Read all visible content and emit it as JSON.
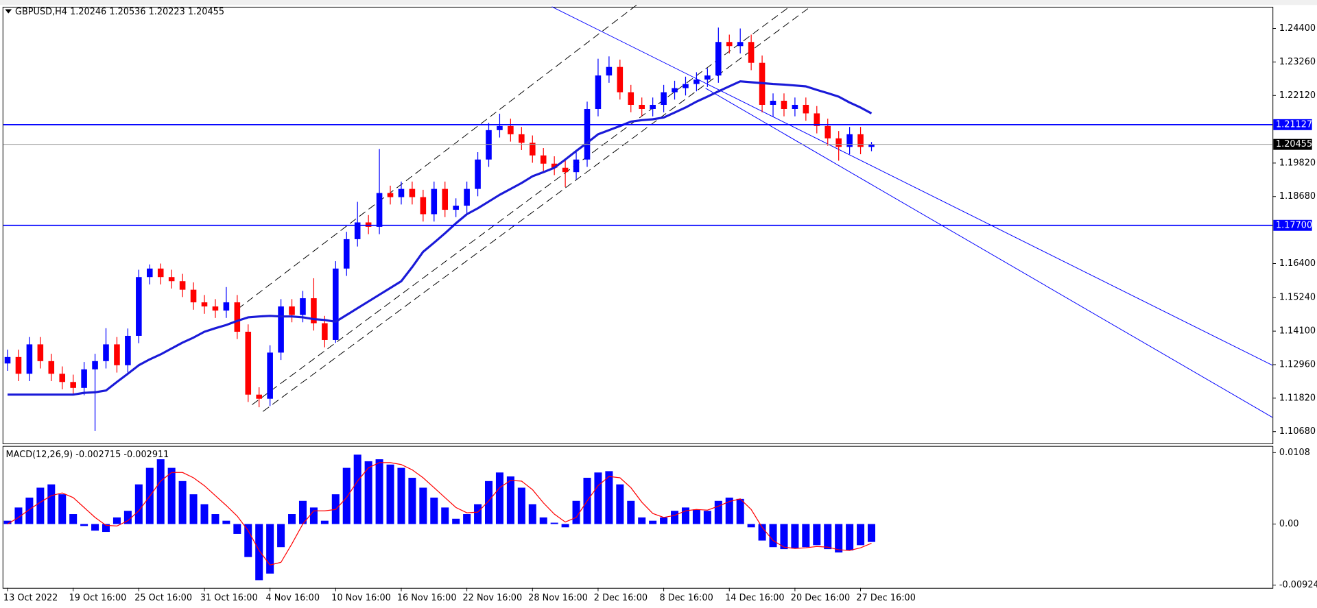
{
  "chart_data": [
    {
      "type": "candlestick",
      "symbol": "GBPUSD,H4",
      "header_ohlc": [
        1.20246,
        1.20536,
        1.20223,
        1.20455
      ],
      "up_color": "#0000ff",
      "down_color": "#ff0000",
      "categories": [
        "13 Oct 2022",
        null,
        null,
        null,
        null,
        null,
        "19 Oct 16:00",
        null,
        null,
        null,
        null,
        null,
        "25 Oct 16:00",
        null,
        null,
        null,
        null,
        null,
        "31 Oct 16:00",
        null,
        null,
        null,
        null,
        null,
        "4 Nov 16:00",
        null,
        null,
        null,
        null,
        null,
        "10 Nov 16:00",
        null,
        null,
        null,
        null,
        null,
        "16 Nov 16:00",
        null,
        null,
        null,
        null,
        null,
        "22 Nov 16:00",
        null,
        null,
        null,
        null,
        null,
        "28 Nov 16:00",
        null,
        null,
        null,
        null,
        null,
        "2 Dec 16:00",
        null,
        null,
        null,
        null,
        null,
        "8 Dec 16:00",
        null,
        null,
        null,
        null,
        null,
        "14 Dec 16:00",
        null,
        null,
        null,
        null,
        null,
        "20 Dec 16:00",
        null,
        null,
        null,
        null,
        null,
        "27 Dec 16:00",
        null
      ],
      "candles": [
        [
          1.13,
          1.1347,
          1.1275,
          1.1322
        ],
        [
          1.1322,
          1.1347,
          1.124,
          1.1265
        ],
        [
          1.1265,
          1.139,
          1.124,
          1.1365
        ],
        [
          1.1365,
          1.139,
          1.1283,
          1.1308
        ],
        [
          1.1308,
          1.1333,
          1.124,
          1.1265
        ],
        [
          1.1265,
          1.129,
          1.1212,
          1.1237
        ],
        [
          1.1237,
          1.1262,
          1.1192,
          1.1217
        ],
        [
          1.1217,
          1.1305,
          1.1192,
          1.128
        ],
        [
          1.128,
          1.1333,
          1.107,
          1.1308
        ],
        [
          1.1308,
          1.142,
          1.1283,
          1.1365
        ],
        [
          1.1365,
          1.139,
          1.1269,
          1.1294
        ],
        [
          1.1294,
          1.1419,
          1.1269,
          1.1394
        ],
        [
          1.1394,
          1.1619,
          1.1369,
          1.1594
        ],
        [
          1.1594,
          1.1637,
          1.1569,
          1.1623
        ],
        [
          1.1623,
          1.164,
          1.1569,
          1.1594
        ],
        [
          1.1594,
          1.1619,
          1.1555,
          1.158
        ],
        [
          1.158,
          1.1605,
          1.1526,
          1.1551
        ],
        [
          1.1551,
          1.1576,
          1.1483,
          1.1508
        ],
        [
          1.1508,
          1.1533,
          1.1469,
          1.1494
        ],
        [
          1.1494,
          1.1519,
          1.1455,
          1.148
        ],
        [
          1.148,
          1.156,
          1.1455,
          1.1508
        ],
        [
          1.1508,
          1.1533,
          1.1383,
          1.1408
        ],
        [
          1.1408,
          1.1433,
          1.1169,
          1.1194
        ],
        [
          1.1194,
          1.1219,
          1.1151,
          1.118
        ],
        [
          1.118,
          1.1362,
          1.1155,
          1.1337
        ],
        [
          1.1337,
          1.1519,
          1.1312,
          1.1494
        ],
        [
          1.1494,
          1.1519,
          1.144,
          1.1465
        ],
        [
          1.1465,
          1.1547,
          1.144,
          1.1522
        ],
        [
          1.1522,
          1.159,
          1.1412,
          1.1437
        ],
        [
          1.1437,
          1.1462,
          1.1355,
          1.138
        ],
        [
          1.138,
          1.1648,
          1.137,
          1.1623
        ],
        [
          1.1623,
          1.1748,
          1.1598,
          1.1723
        ],
        [
          1.1723,
          1.185,
          1.1698,
          1.178
        ],
        [
          1.178,
          1.1805,
          1.174,
          1.1765
        ],
        [
          1.1765,
          1.203,
          1.174,
          1.188
        ],
        [
          1.188,
          1.1905,
          1.1841,
          1.1866
        ],
        [
          1.1866,
          1.1919,
          1.1841,
          1.1894
        ],
        [
          1.1894,
          1.1919,
          1.1841,
          1.1866
        ],
        [
          1.1866,
          1.1891,
          1.1783,
          1.1808
        ],
        [
          1.1808,
          1.1919,
          1.1783,
          1.1894
        ],
        [
          1.1894,
          1.1919,
          1.1798,
          1.1823
        ],
        [
          1.1823,
          1.1862,
          1.1798,
          1.1837
        ],
        [
          1.1837,
          1.1919,
          1.1812,
          1.1894
        ],
        [
          1.1894,
          1.2019,
          1.1869,
          1.1994
        ],
        [
          1.1994,
          1.2119,
          1.1969,
          1.2094
        ],
        [
          1.2094,
          1.215,
          1.2069,
          1.2108
        ],
        [
          1.2108,
          1.2133,
          1.2055,
          1.208
        ],
        [
          1.208,
          1.2105,
          1.2026,
          1.2051
        ],
        [
          1.2051,
          1.2076,
          1.1983,
          1.2008
        ],
        [
          1.2008,
          1.2033,
          1.1955,
          1.198
        ],
        [
          1.198,
          1.2005,
          1.1941,
          1.1966
        ],
        [
          1.1966,
          1.1991,
          1.19,
          1.1951
        ],
        [
          1.1951,
          1.2019,
          1.1926,
          1.1994
        ],
        [
          1.1994,
          1.2191,
          1.1969,
          1.2166
        ],
        [
          1.2166,
          1.2337,
          1.2141,
          1.228
        ],
        [
          1.228,
          1.2345,
          1.2255,
          1.2309
        ],
        [
          1.2309,
          1.2334,
          1.2198,
          1.2223
        ],
        [
          1.2223,
          1.2248,
          1.2155,
          1.218
        ],
        [
          1.218,
          1.2205,
          1.2141,
          1.2166
        ],
        [
          1.2166,
          1.2205,
          1.2141,
          1.218
        ],
        [
          1.218,
          1.2248,
          1.2155,
          1.2223
        ],
        [
          1.2223,
          1.2262,
          1.2198,
          1.2237
        ],
        [
          1.2237,
          1.2276,
          1.2212,
          1.2251
        ],
        [
          1.2251,
          1.2291,
          1.2226,
          1.2266
        ],
        [
          1.2266,
          1.2305,
          1.2241,
          1.228
        ],
        [
          1.228,
          1.2443,
          1.2255,
          1.2394
        ],
        [
          1.2394,
          1.2419,
          1.2355,
          1.238
        ],
        [
          1.238,
          1.244,
          1.2355,
          1.2394
        ],
        [
          1.2394,
          1.2419,
          1.2298,
          1.2323
        ],
        [
          1.2323,
          1.2348,
          1.2155,
          1.218
        ],
        [
          1.218,
          1.2219,
          1.214,
          1.2194
        ],
        [
          1.2194,
          1.2219,
          1.2141,
          1.2166
        ],
        [
          1.2166,
          1.2205,
          1.2141,
          1.218
        ],
        [
          1.218,
          1.2205,
          1.2126,
          1.2151
        ],
        [
          1.2151,
          1.2176,
          1.2083,
          1.2108
        ],
        [
          1.2108,
          1.2133,
          1.2041,
          1.2066
        ],
        [
          1.2066,
          1.2091,
          1.199,
          1.2037
        ],
        [
          1.2037,
          1.2105,
          1.2012,
          1.208
        ],
        [
          1.208,
          1.2105,
          1.2012,
          1.2037
        ],
        [
          1.2037,
          1.20536,
          1.20223,
          1.20455
        ]
      ],
      "ma": {
        "color": "#1a1ad8",
        "values": [
          1.1194,
          1.1194,
          1.1194,
          1.1194,
          1.1194,
          1.1194,
          1.1194,
          1.12,
          1.1202,
          1.1208,
          1.1237,
          1.1265,
          1.1294,
          1.1314,
          1.1331,
          1.1351,
          1.1371,
          1.1388,
          1.1408,
          1.142,
          1.1431,
          1.1445,
          1.1457,
          1.146,
          1.1462,
          1.146,
          1.146,
          1.1457,
          1.1451,
          1.1448,
          1.1442,
          1.1465,
          1.1488,
          1.1511,
          1.1534,
          1.1557,
          1.158,
          1.1628,
          1.168,
          1.1711,
          1.1743,
          1.1777,
          1.1808,
          1.1828,
          1.1851,
          1.1874,
          1.1894,
          1.1914,
          1.1937,
          1.1951,
          1.1966,
          1.1994,
          1.2023,
          1.2051,
          1.208,
          1.2094,
          1.2108,
          1.2123,
          1.2128,
          1.2131,
          1.2137,
          1.2154,
          1.2171,
          1.2191,
          1.2208,
          1.2226,
          1.2243,
          1.226,
          1.2257,
          1.2254,
          1.2251,
          1.2249,
          1.2246,
          1.2243,
          1.2231,
          1.222,
          1.2208,
          1.2188,
          1.2171,
          1.2151
        ]
      },
      "ylim": [
        1.1028,
        1.2514
      ],
      "yticks": [
        {
          "value": 1.244,
          "label": "1.24400"
        },
        {
          "value": 1.2326,
          "label": "1.23260"
        },
        {
          "value": 1.2212,
          "label": "1.22120"
        },
        {
          "value": 1.1982,
          "label": "1.19820"
        },
        {
          "value": 1.1868,
          "label": "1.18680"
        },
        {
          "value": 1.164,
          "label": "1.16400"
        },
        {
          "value": 1.1524,
          "label": "1.15240"
        },
        {
          "value": 1.141,
          "label": "1.14100"
        },
        {
          "value": 1.1296,
          "label": "1.12960"
        },
        {
          "value": 1.1182,
          "label": "1.11820"
        },
        {
          "value": 1.1068,
          "label": "1.10680"
        }
      ],
      "levels": [
        1.21127,
        {
          "value": 1.177,
          "label": "1.17700"
        }
      ],
      "level_color": "#0000ff",
      "current_price": 1.20455,
      "current_price_color": "#000000"
    },
    {
      "type": "macd",
      "title": "MACD(12,26,9)",
      "title_values": [
        -0.002715,
        -0.002911
      ],
      "histogram": {
        "color": "#0000ff",
        "values": [
          0.0005,
          0.0025,
          0.004,
          0.0055,
          0.006,
          0.0045,
          0.0015,
          -0.0003,
          -0.001,
          -0.0012,
          0.001,
          0.002,
          0.006,
          0.0085,
          0.0098,
          0.0085,
          0.0065,
          0.0045,
          0.003,
          0.0015,
          0.0005,
          -0.0015,
          -0.005,
          -0.0085,
          -0.0075,
          -0.0035,
          0.0015,
          0.0035,
          0.0025,
          0.0005,
          0.0045,
          0.0085,
          0.0105,
          0.0095,
          0.0098,
          0.009,
          0.0085,
          0.007,
          0.0055,
          0.004,
          0.0025,
          0.0008,
          0.0015,
          0.003,
          0.0065,
          0.0078,
          0.0072,
          0.0055,
          0.003,
          0.001,
          0.0002,
          -0.0005,
          0.0035,
          0.007,
          0.0078,
          0.008,
          0.006,
          0.0035,
          0.001,
          0.0005,
          0.001,
          0.002,
          0.0025,
          0.0022,
          0.002,
          0.0035,
          0.004,
          0.0038,
          -0.0005,
          -0.0025,
          -0.0035,
          -0.0038,
          -0.0037,
          -0.0035,
          -0.0032,
          -0.0038,
          -0.0043,
          -0.004,
          -0.0032,
          -0.002715
        ]
      },
      "signal": {
        "color": "#ff0000",
        "values": [
          0.0,
          0.001,
          0.0022,
          0.0033,
          0.0043,
          0.0047,
          0.004,
          0.0025,
          0.001,
          -0.0002,
          -0.0003,
          0.0005,
          0.002,
          0.0042,
          0.0065,
          0.0078,
          0.0078,
          0.007,
          0.0058,
          0.0043,
          0.0028,
          0.0012,
          -0.001,
          -0.004,
          -0.0062,
          -0.0058,
          -0.003,
          0.0,
          0.002,
          0.002,
          0.0022,
          0.004,
          0.0065,
          0.0085,
          0.0093,
          0.0093,
          0.009,
          0.0082,
          0.007,
          0.0055,
          0.004,
          0.0025,
          0.0017,
          0.0018,
          0.0035,
          0.0055,
          0.0066,
          0.0065,
          0.0052,
          0.0032,
          0.0015,
          0.0003,
          0.001,
          0.0035,
          0.0058,
          0.0072,
          0.007,
          0.0055,
          0.0033,
          0.0016,
          0.001,
          0.0013,
          0.002,
          0.0022,
          0.0021,
          0.0027,
          0.0034,
          0.0038,
          0.0022,
          -0.0005,
          -0.0025,
          -0.0035,
          -0.0037,
          -0.0036,
          -0.0034,
          -0.0035,
          -0.0039,
          -0.004,
          -0.0036,
          -0.002911
        ]
      },
      "ylim": [
        -0.00966,
        0.01182
      ],
      "yticks": [
        0.0108,
        {
          "value": 0,
          "label": "0.00"
        },
        -0.009248
      ]
    }
  ]
}
